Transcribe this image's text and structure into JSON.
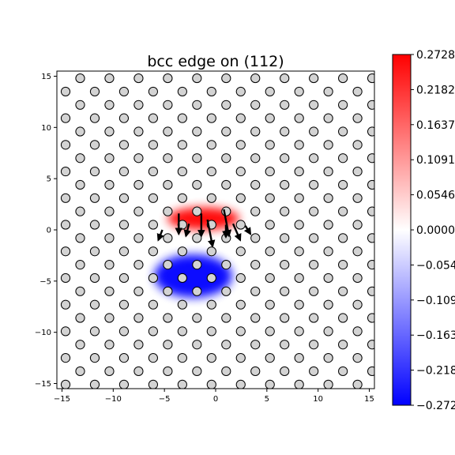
{
  "chart_data": {
    "type": "heatmap",
    "title": "bcc edge on (112)",
    "xlabel": "",
    "ylabel": "",
    "xlim": [
      -15.5,
      15.5
    ],
    "ylim": [
      -15.5,
      15.5
    ],
    "xticks": [
      -15,
      -10,
      -5,
      0,
      5,
      10,
      15
    ],
    "yticks": [
      -15,
      -10,
      -5,
      0,
      5,
      10,
      15
    ],
    "grid": false,
    "colormap": "bwr",
    "colorbar": {
      "min": -0.2728,
      "max": 0.2728,
      "tick_labels": [
        "0.2728",
        "0.2182",
        "0.1637",
        "0.1091",
        "0.0546",
        "0.0000",
        "-0.0546",
        "-0.1091",
        "-0.1637",
        "-0.2182",
        "-0.2728"
      ],
      "tick_values": [
        0.2728,
        0.2182,
        0.1637,
        0.1091,
        0.0546,
        0.0,
        -0.0546,
        -0.1091,
        -0.1637,
        -0.2182,
        -0.2728
      ]
    },
    "lattice": {
      "row_spacing": 1.3,
      "atom_spacing": 2.85,
      "row_shift": 1.425,
      "y_offset": 0.5,
      "atom_color": "#d3d3d3"
    },
    "field_lobes": [
      {
        "sign": "positive",
        "cx": -1.2,
        "cy": 1.1,
        "sx": 3.5,
        "sy": 1.1,
        "amplitude": 0.2728
      },
      {
        "sign": "negative",
        "cx": -2.2,
        "cy": -4.5,
        "sx": 3.8,
        "sy": 2.1,
        "amplitude": -0.2728
      }
    ],
    "displacement_arrows": [
      {
        "x": -3.6,
        "y": 1.6,
        "dx": 0.0,
        "dy": -2.0
      },
      {
        "x": -1.4,
        "y": 1.6,
        "dx": 0.0,
        "dy": -2.2
      },
      {
        "x": -0.8,
        "y": 1.0,
        "dx": 0.5,
        "dy": -2.6
      },
      {
        "x": 0.8,
        "y": 2.0,
        "dx": 0.5,
        "dy": -2.6
      },
      {
        "x": 1.7,
        "y": 0.6,
        "dx": 0.7,
        "dy": -1.6
      },
      {
        "x": 1.0,
        "y": 0.5,
        "dx": 0.0,
        "dy": -1.2
      },
      {
        "x": -2.6,
        "y": 0.6,
        "dx": -0.3,
        "dy": -1.2
      },
      {
        "x": -5.2,
        "y": 0.0,
        "dx": -0.4,
        "dy": -1.0
      },
      {
        "x": 2.9,
        "y": 0.4,
        "dx": 0.5,
        "dy": -0.8
      }
    ],
    "colors": {
      "positive": "#ff0000",
      "zero": "#ffffff",
      "negative": "#0000ff"
    }
  }
}
